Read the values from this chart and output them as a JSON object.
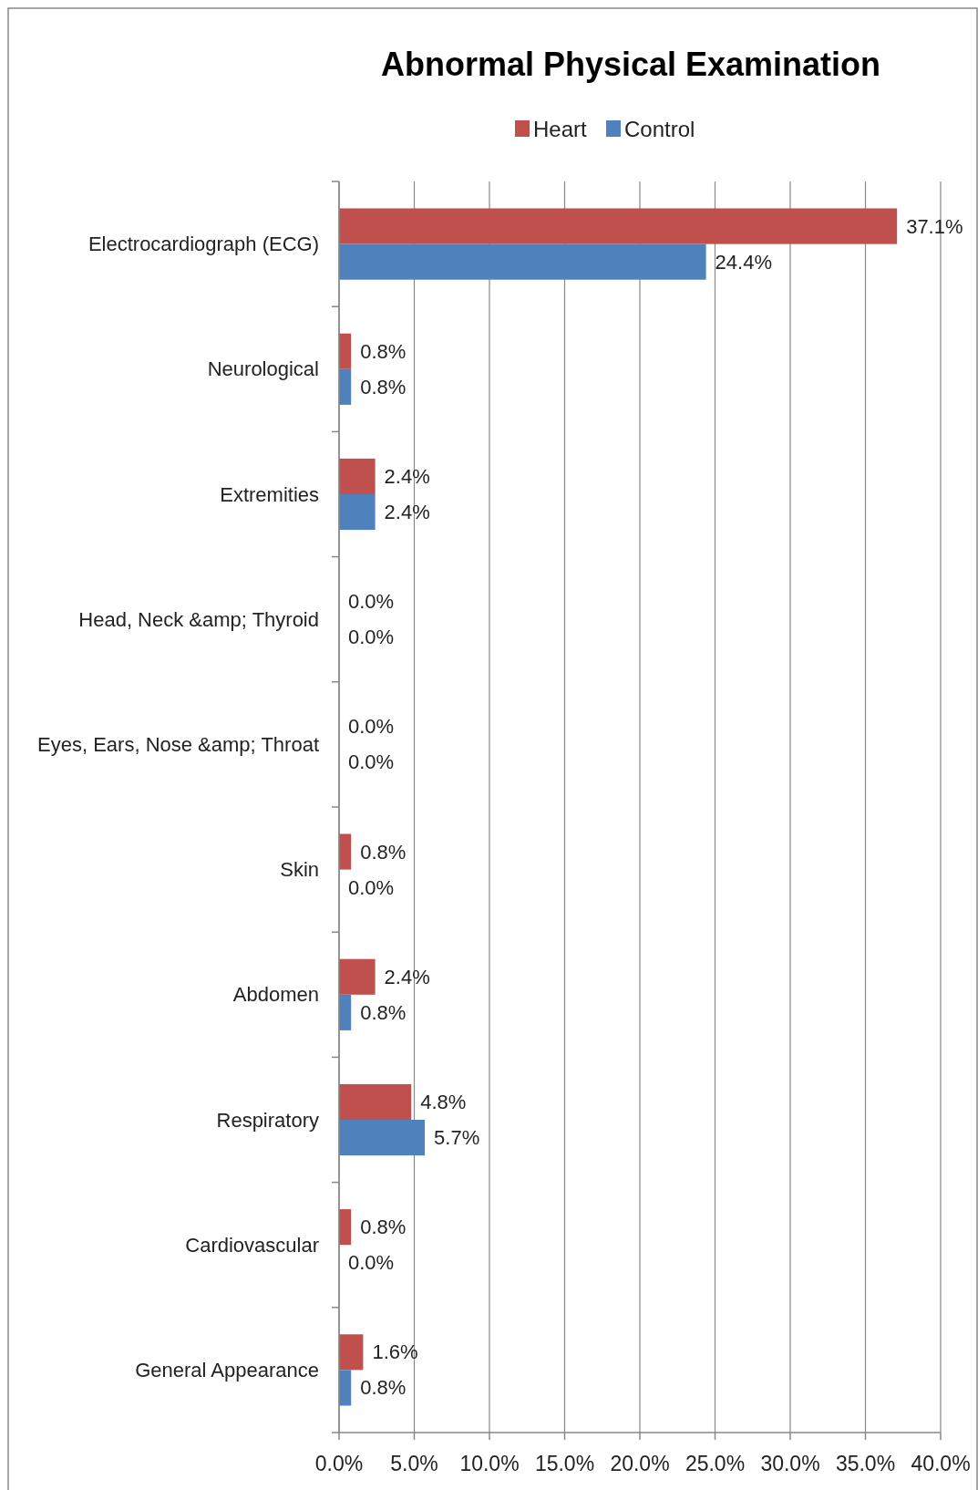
{
  "chart_data": {
    "type": "bar",
    "orientation": "horizontal",
    "title": "Abnormal Physical Examination",
    "categories": [
      "Electrocardiograph (ECG)",
      "Neurological",
      "Extremities",
      "Head, Neck &amp; Thyroid",
      "Eyes, Ears, Nose &amp; Throat",
      "Skin",
      "Abdomen",
      "Respiratory",
      "Cardiovascular",
      "General Appearance"
    ],
    "series": [
      {
        "name": "Heart",
        "color": "#c0504d",
        "values": [
          37.1,
          0.8,
          2.4,
          0,
          0,
          0.8,
          2.4,
          4.8,
          0.8,
          1.6
        ],
        "value_labels": [
          "37.1%",
          "0.8%",
          "2.4%",
          "0.0%",
          "0.0%",
          "0.8%",
          "2.4%",
          "4.8%",
          "0.8%",
          "1.6%"
        ]
      },
      {
        "name": "Control",
        "color": "#4f81bd",
        "values": [
          24.4,
          0.8,
          2.4,
          0,
          0,
          0,
          0.8,
          5.7,
          0,
          0.8
        ],
        "value_labels": [
          "24.4%",
          "0.8%",
          "2.4%",
          "0.0%",
          "0.0%",
          "0.0%",
          "0.8%",
          "5.7%",
          "0.0%",
          "0.8%"
        ]
      }
    ],
    "xlim": [
      0,
      40
    ],
    "xticks": [
      {
        "value": 0,
        "label": "0.0%"
      },
      {
        "value": 5,
        "label": "5.0%"
      },
      {
        "value": 10,
        "label": "10.0%"
      },
      {
        "value": 15,
        "label": "15.0%"
      },
      {
        "value": 20,
        "label": "20.0%"
      },
      {
        "value": 25,
        "label": "25.0%"
      },
      {
        "value": 30,
        "label": "30.0%"
      },
      {
        "value": 35,
        "label": "35.0%"
      },
      {
        "value": 40,
        "label": "40.0%"
      }
    ],
    "grid": "x",
    "legend": "top"
  }
}
